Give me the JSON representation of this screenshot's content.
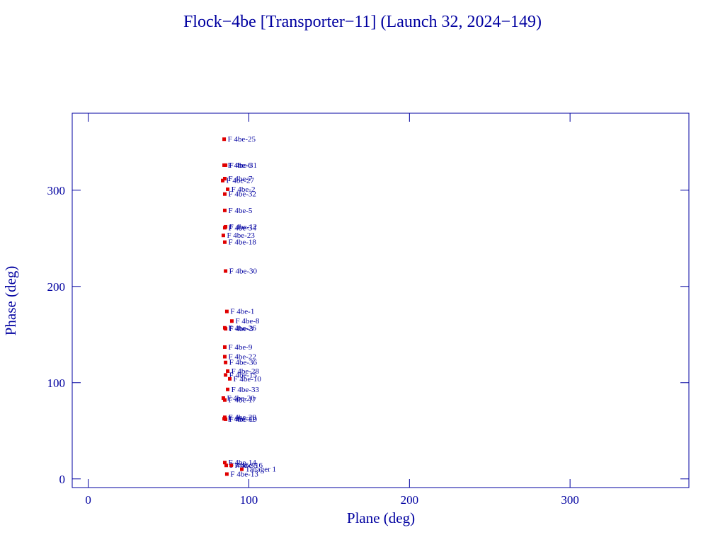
{
  "chart_data": {
    "type": "scatter",
    "title": "Flock−4be [Transporter−11] (Launch 32, 2024−149)",
    "x_label": "Plane (deg)",
    "y_label": "Phase (deg)",
    "xlim": [
      -10,
      374
    ],
    "ylim": [
      -9,
      380
    ],
    "xticks": [
      0,
      100,
      200,
      300
    ],
    "yticks": [
      0,
      100,
      200,
      300
    ],
    "marker_color": "#e00000",
    "label_color": "#0000a0",
    "point_labels": [
      "F 4be-25",
      "F 4be-31",
      "F 4be-6",
      "F 4be-7",
      "F 4be-27",
      "F 4be-2",
      "F 4be-32",
      "F 4be-5",
      "F 4be-12",
      "F 4be-34",
      "F 4be-23",
      "F 4be-18",
      "F 4be-30",
      "F 4be-1",
      "F 4be-8",
      "F 4be-26",
      "F 4be-3",
      "F 4be-9",
      "F 4be-22",
      "F 4be-36",
      "F 4be-28",
      "F 4be-15",
      "F 4be-10",
      "F 4be-33",
      "F 4be-20",
      "F 4be-17",
      "F 4be-29",
      "F 4be-19",
      "F 4be-11",
      "F 4be-14",
      "F 4be-35",
      "F 4be-16",
      "Tanager 1",
      "F 4be-13"
    ],
    "x": [
      84.6,
      85.5,
      84.6,
      85,
      83.7,
      86.8,
      85,
      85,
      85.5,
      85,
      84.1,
      85,
      85.5,
      86.3,
      89.4,
      85,
      85.5,
      85,
      85,
      85.5,
      86.8,
      85.5,
      88.1,
      86.8,
      84.1,
      85,
      85,
      85.5,
      84.6,
      85,
      85.9,
      89,
      95.6,
      86.3
    ],
    "y": [
      353,
      326,
      326,
      312,
      310,
      301,
      296,
      279,
      262,
      261,
      253,
      246,
      216,
      174,
      164,
      157,
      156,
      137,
      127,
      121,
      112,
      108,
      104,
      93,
      84,
      82,
      64,
      62,
      62.5,
      17,
      14,
      14,
      10,
      5
    ]
  }
}
